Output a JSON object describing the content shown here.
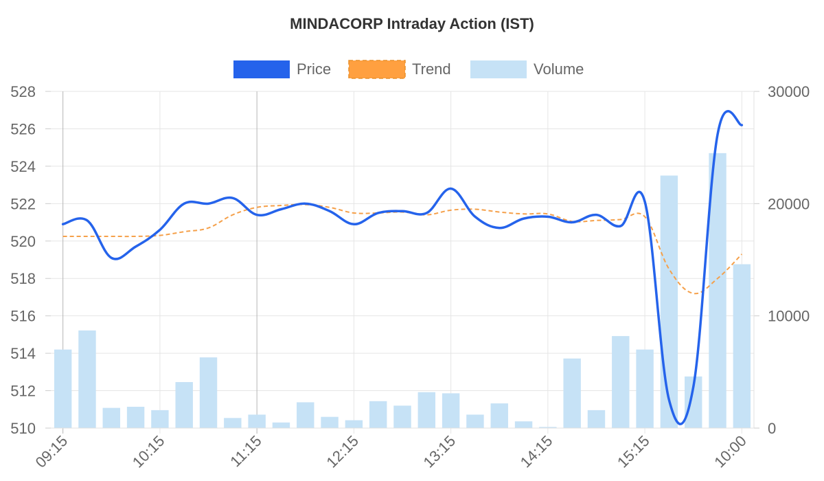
{
  "chart_data": {
    "type": "bar+line",
    "title": "MINDACORP Intraday Action (IST)",
    "legend": [
      {
        "key": "price",
        "label": "Price",
        "color": "#2563eb"
      },
      {
        "key": "trend",
        "label": "Trend",
        "color": "#ffa040"
      },
      {
        "key": "volume",
        "label": "Volume",
        "color": "#c6e2f6"
      }
    ],
    "x_tick_labels": [
      "09:15",
      "10:15",
      "11:15",
      "12:15",
      "13:15",
      "14:15",
      "15:15",
      "10:00"
    ],
    "y_left": {
      "min": 510,
      "max": 528,
      "step": 2
    },
    "y_right": {
      "min": 0,
      "max": 30000,
      "step": 10000
    },
    "series": [
      {
        "name": "Price",
        "axis": "left",
        "values": [
          520.9,
          521.1,
          519.1,
          519.7,
          520.6,
          522.0,
          522.0,
          522.3,
          521.4,
          521.7,
          522.0,
          521.6,
          520.9,
          521.5,
          521.6,
          521.5,
          522.8,
          521.3,
          520.7,
          521.2,
          521.3,
          521.0,
          521.4,
          520.8,
          522.1,
          511.5,
          512.2,
          525.7,
          526.2
        ]
      },
      {
        "name": "Trend",
        "axis": "left",
        "values": [
          520.25,
          520.25,
          520.25,
          520.25,
          520.3,
          520.5,
          520.7,
          521.4,
          521.8,
          521.9,
          521.95,
          521.8,
          521.5,
          521.5,
          521.55,
          521.4,
          521.65,
          521.7,
          521.55,
          521.45,
          521.45,
          521.05,
          521.1,
          521.15,
          521.3,
          518.5,
          517.2,
          518.0,
          519.3
        ]
      },
      {
        "name": "Volume",
        "axis": "right",
        "values": [
          7000,
          8700,
          1800,
          1900,
          1600,
          4100,
          6300,
          900,
          1200,
          500,
          2300,
          1000,
          700,
          2400,
          2000,
          3200,
          3100,
          1200,
          2200,
          600,
          100,
          6200,
          1600,
          8200,
          7000,
          22500,
          4600,
          24500,
          14600
        ]
      }
    ]
  }
}
